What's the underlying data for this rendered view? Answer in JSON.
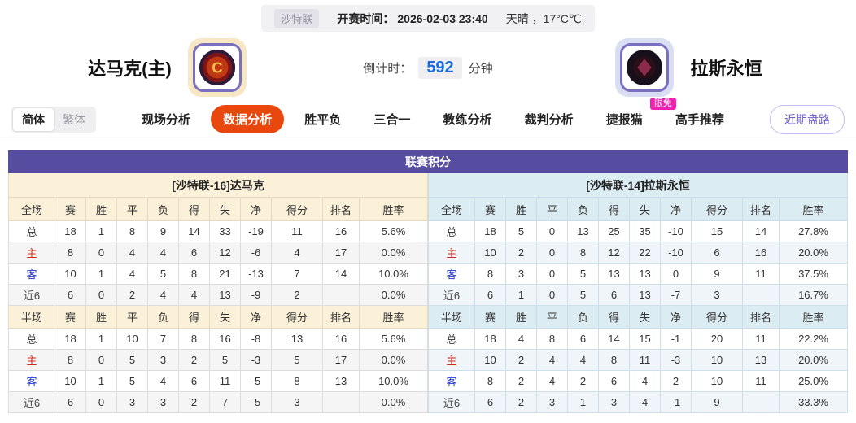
{
  "top_bar": {
    "league": "沙特联",
    "kickoff_label": "开赛时间：",
    "kickoff_time": "2026-02-03 23:40",
    "weather": "天晴 ，17°C℃"
  },
  "header": {
    "home_team": "达马克(主)",
    "away_team": "拉斯永恒",
    "home_badge_text": "DAMAC CLUB",
    "away_badge_text": "AL KHOLOOD",
    "countdown_label": "倒计时：",
    "countdown_value": "592",
    "countdown_unit": "分钟"
  },
  "nav": {
    "lang": {
      "simplified": "简体",
      "traditional": "繁体"
    },
    "tabs": [
      {
        "label": "现场分析",
        "active": false
      },
      {
        "label": "数据分析",
        "active": true
      },
      {
        "label": "胜平负",
        "active": false
      },
      {
        "label": "三合一",
        "active": false
      },
      {
        "label": "教练分析",
        "active": false
      },
      {
        "label": "裁判分析",
        "active": false
      },
      {
        "label": "捷报猫",
        "active": false,
        "badge": "限免"
      },
      {
        "label": "高手推荐",
        "active": false
      }
    ],
    "recent_button": "近期盘路"
  },
  "table": {
    "title": "联赛积分",
    "columns": [
      "赛",
      "胜",
      "平",
      "负",
      "得",
      "失",
      "净",
      "得分",
      "排名",
      "胜率"
    ],
    "panels": [
      {
        "subtitle": "[沙特联-16]达马克",
        "theme": "home",
        "sections": [
          {
            "scope": "全场",
            "rows": [
              {
                "label": "总",
                "type": "total",
                "values": [
                  "18",
                  "1",
                  "8",
                  "9",
                  "14",
                  "33",
                  "-19",
                  "11",
                  "16",
                  "5.6%"
                ]
              },
              {
                "label": "主",
                "type": "home",
                "values": [
                  "8",
                  "0",
                  "4",
                  "4",
                  "6",
                  "12",
                  "-6",
                  "4",
                  "17",
                  "0.0%"
                ]
              },
              {
                "label": "客",
                "type": "away",
                "values": [
                  "10",
                  "1",
                  "4",
                  "5",
                  "8",
                  "21",
                  "-13",
                  "7",
                  "14",
                  "10.0%"
                ]
              },
              {
                "label": "近6",
                "type": "recent",
                "values": [
                  "6",
                  "0",
                  "2",
                  "4",
                  "4",
                  "13",
                  "-9",
                  "2",
                  "",
                  "0.0%"
                ]
              }
            ]
          },
          {
            "scope": "半场",
            "rows": [
              {
                "label": "总",
                "type": "total",
                "values": [
                  "18",
                  "1",
                  "10",
                  "7",
                  "8",
                  "16",
                  "-8",
                  "13",
                  "16",
                  "5.6%"
                ]
              },
              {
                "label": "主",
                "type": "home",
                "values": [
                  "8",
                  "0",
                  "5",
                  "3",
                  "2",
                  "5",
                  "-3",
                  "5",
                  "17",
                  "0.0%"
                ]
              },
              {
                "label": "客",
                "type": "away",
                "values": [
                  "10",
                  "1",
                  "5",
                  "4",
                  "6",
                  "11",
                  "-5",
                  "8",
                  "13",
                  "10.0%"
                ]
              },
              {
                "label": "近6",
                "type": "recent",
                "values": [
                  "6",
                  "0",
                  "3",
                  "3",
                  "2",
                  "7",
                  "-5",
                  "3",
                  "",
                  "0.0%"
                ]
              }
            ]
          }
        ]
      },
      {
        "subtitle": "[沙特联-14]拉斯永恒",
        "theme": "away",
        "sections": [
          {
            "scope": "全场",
            "rows": [
              {
                "label": "总",
                "type": "total",
                "values": [
                  "18",
                  "5",
                  "0",
                  "13",
                  "25",
                  "35",
                  "-10",
                  "15",
                  "14",
                  "27.8%"
                ]
              },
              {
                "label": "主",
                "type": "home",
                "values": [
                  "10",
                  "2",
                  "0",
                  "8",
                  "12",
                  "22",
                  "-10",
                  "6",
                  "16",
                  "20.0%"
                ]
              },
              {
                "label": "客",
                "type": "away",
                "values": [
                  "8",
                  "3",
                  "0",
                  "5",
                  "13",
                  "13",
                  "0",
                  "9",
                  "11",
                  "37.5%"
                ]
              },
              {
                "label": "近6",
                "type": "recent",
                "values": [
                  "6",
                  "1",
                  "0",
                  "5",
                  "6",
                  "13",
                  "-7",
                  "3",
                  "",
                  "16.7%"
                ]
              }
            ]
          },
          {
            "scope": "半场",
            "rows": [
              {
                "label": "总",
                "type": "total",
                "values": [
                  "18",
                  "4",
                  "8",
                  "6",
                  "14",
                  "15",
                  "-1",
                  "20",
                  "11",
                  "22.2%"
                ]
              },
              {
                "label": "主",
                "type": "home",
                "values": [
                  "10",
                  "2",
                  "4",
                  "4",
                  "8",
                  "11",
                  "-3",
                  "10",
                  "13",
                  "20.0%"
                ]
              },
              {
                "label": "客",
                "type": "away",
                "values": [
                  "8",
                  "2",
                  "4",
                  "2",
                  "6",
                  "4",
                  "2",
                  "10",
                  "11",
                  "25.0%"
                ]
              },
              {
                "label": "近6",
                "type": "recent",
                "values": [
                  "6",
                  "2",
                  "3",
                  "1",
                  "3",
                  "4",
                  "-1",
                  "9",
                  "",
                  "33.3%"
                ]
              }
            ]
          }
        ]
      }
    ]
  },
  "colors": {
    "accent_purple": "#564CA0",
    "active_tab_orange": "#E8480E",
    "badge_pink": "#F021AE",
    "home_theme_bg": "#FBF0D8",
    "away_theme_bg": "#DCECF3",
    "countdown_blue": "#1A6EDC",
    "home_row_red": "#CE2A1C",
    "away_row_blue": "#2438CC"
  }
}
